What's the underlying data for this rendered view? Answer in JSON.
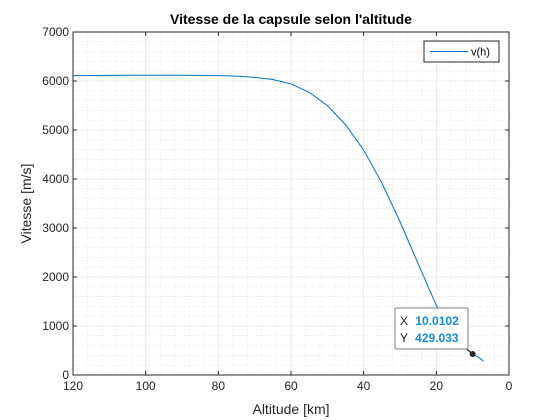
{
  "chart_data": {
    "type": "line",
    "title": "Vitesse de la capsule selon l'altitude",
    "xlabel": "Altitude [km]",
    "ylabel": "Vitesse [m/s]",
    "xlim": [
      120,
      0
    ],
    "ylim": [
      0,
      7000
    ],
    "x_reversed": true,
    "grid": "major and minor",
    "legend_position": "top-right",
    "xticks": [
      120,
      100,
      80,
      60,
      40,
      20,
      0
    ],
    "yticks": [
      0,
      1000,
      2000,
      3000,
      4000,
      5000,
      6000,
      7000
    ],
    "series": [
      {
        "name": "v(h)",
        "color": "#0072BD",
        "x": [
          120,
          110,
          100,
          90,
          80,
          75,
          70,
          65,
          60,
          55,
          50,
          45,
          40,
          35,
          30,
          25,
          20,
          18,
          16,
          14,
          12,
          10.0102,
          8,
          7
        ],
        "y": [
          6110,
          6115,
          6118,
          6118,
          6110,
          6100,
          6075,
          6030,
          5940,
          5770,
          5500,
          5110,
          4590,
          3920,
          3130,
          2270,
          1420,
          1140,
          900,
          700,
          540,
          429.033,
          340,
          280
        ]
      }
    ],
    "datatip": {
      "x_label": "X",
      "x_value": "10.0102",
      "y_label": "Y",
      "y_value": "429.033",
      "value_color": "#0F8BE8"
    }
  }
}
